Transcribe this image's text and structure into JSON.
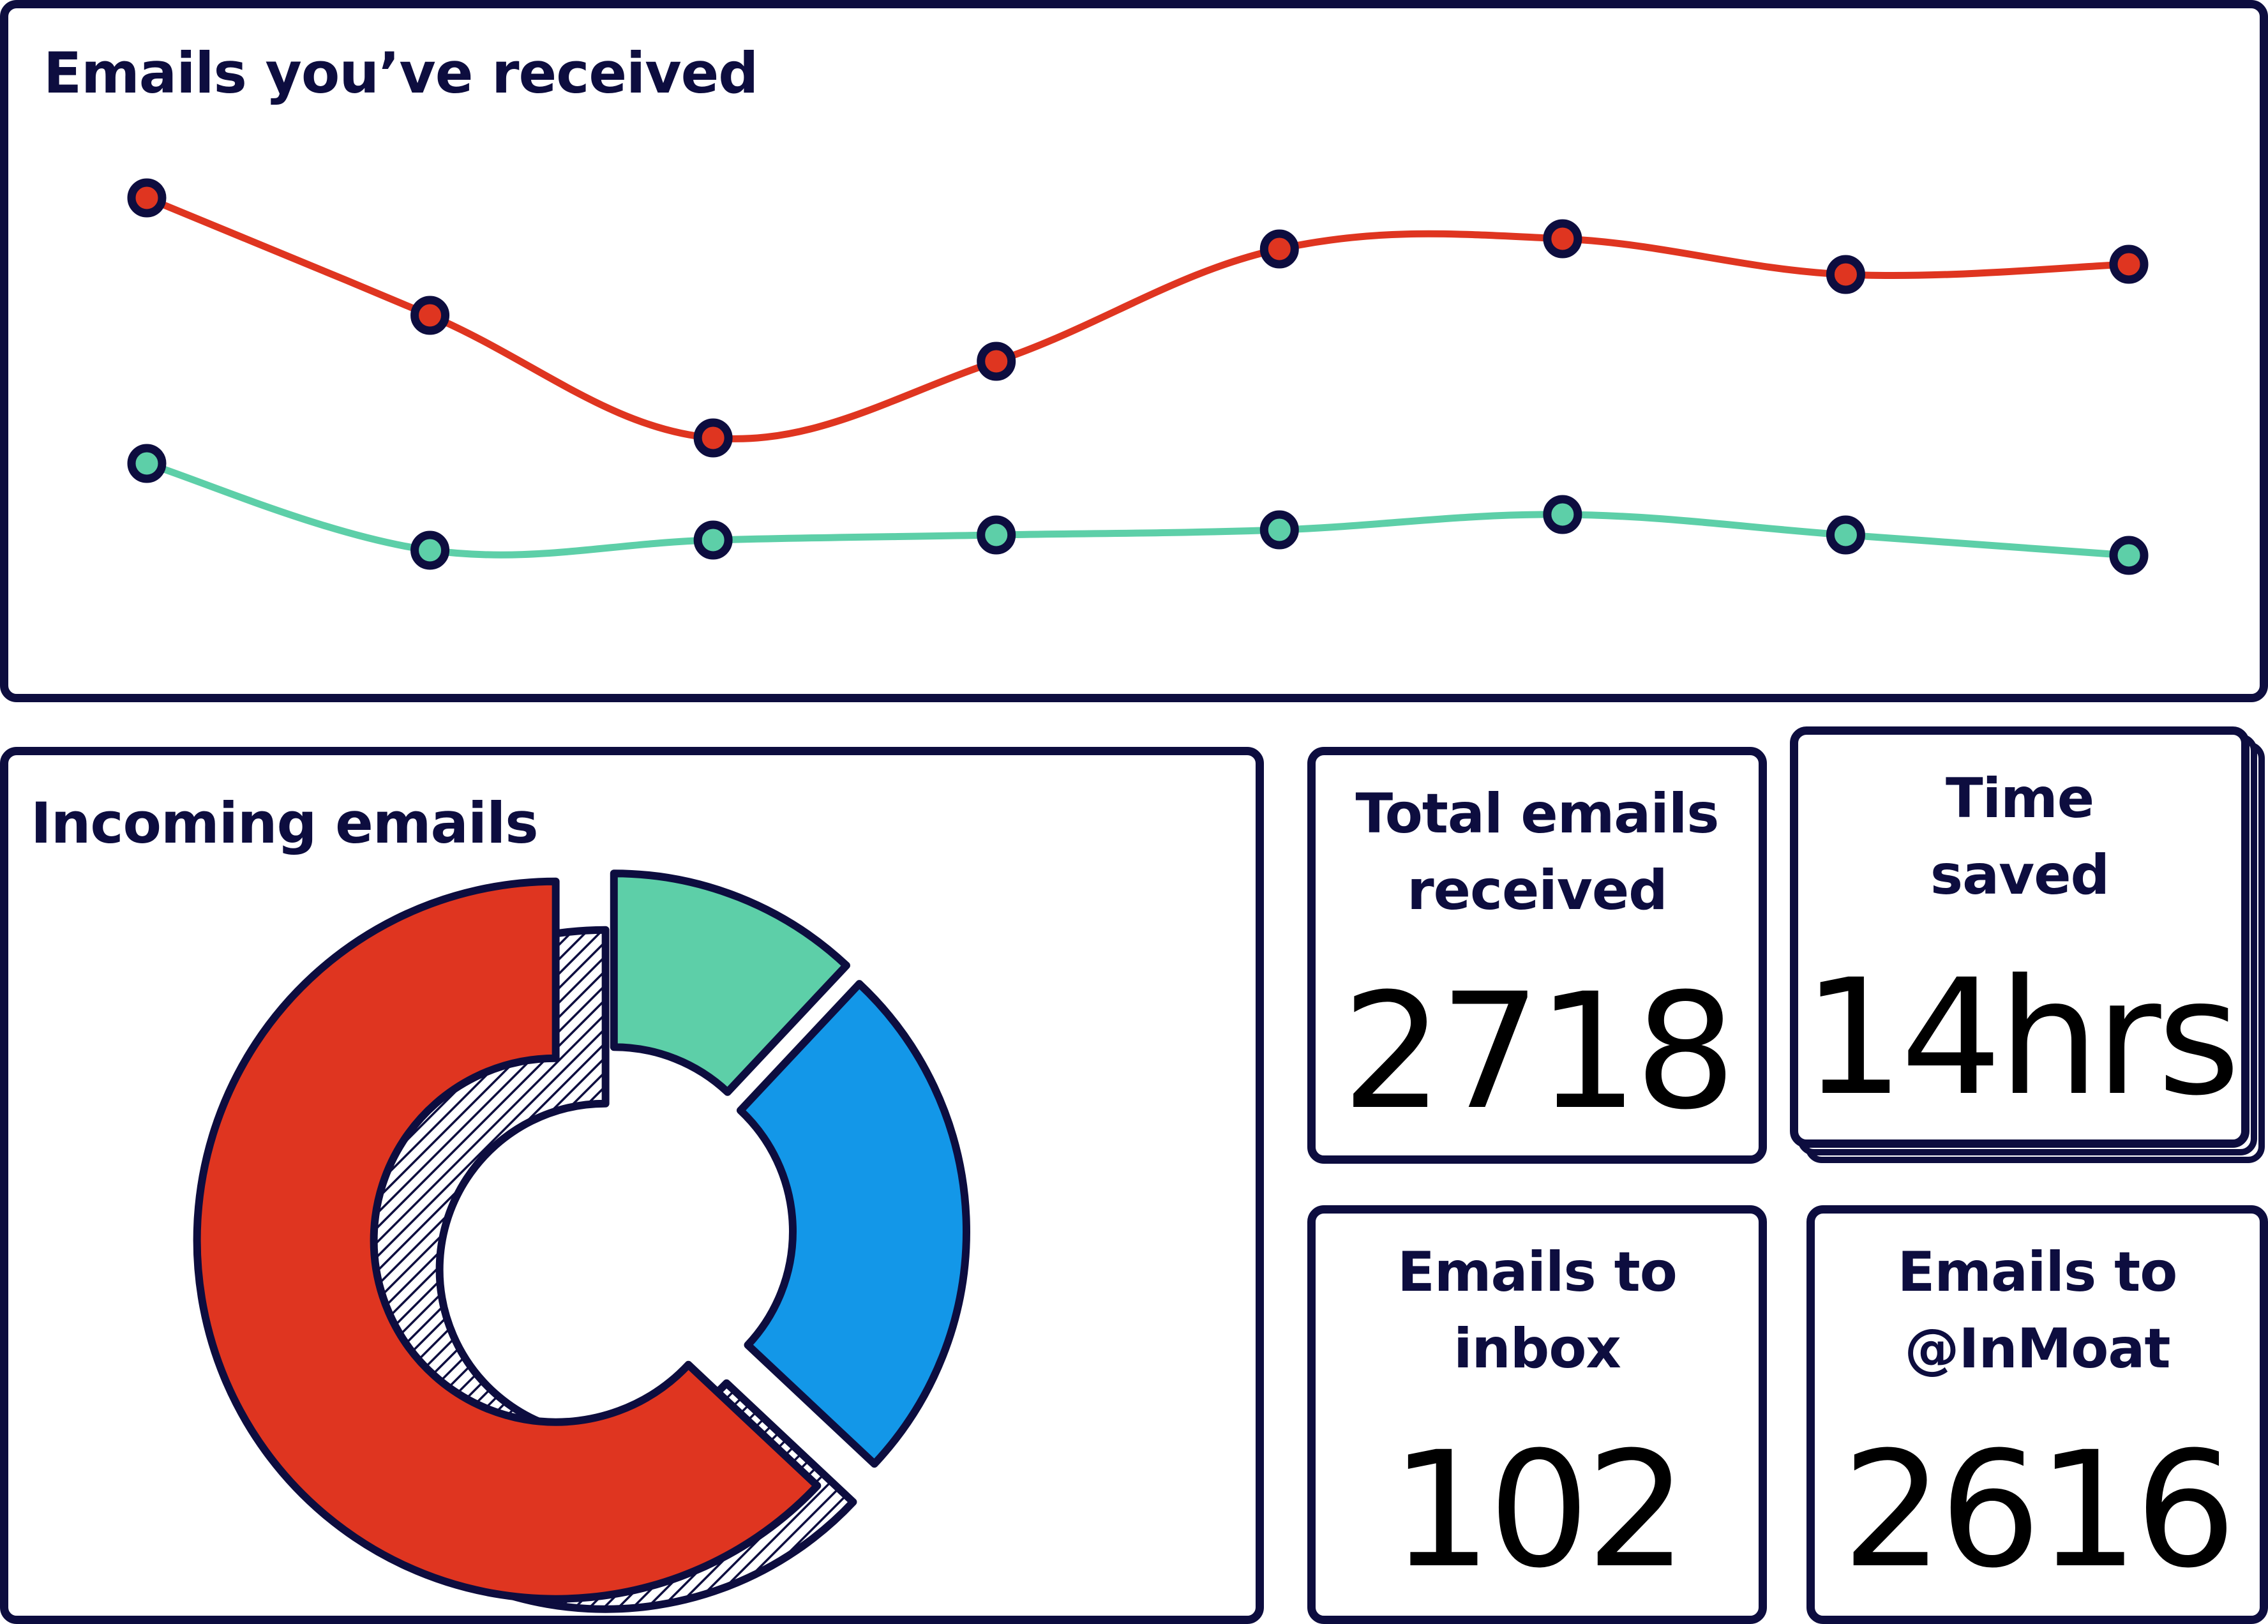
{
  "colors": {
    "outline": "#0d0d3f",
    "series_a": "#df3520",
    "series_b": "#5dcfa8",
    "blue": "#1397e8"
  },
  "line_panel": {
    "title": "Emails you’ve received"
  },
  "donut_panel": {
    "title": "Incoming emails"
  },
  "stats": {
    "total": {
      "label_1": "Total emails",
      "label_2": "received",
      "value": "2718"
    },
    "time": {
      "label_1": "Time",
      "label_2": "saved",
      "value": "14hrs"
    },
    "inbox": {
      "label_1": "Emails to",
      "label_2": "inbox",
      "value": "102"
    },
    "inmoat": {
      "label_1": "Emails to",
      "label_2": "@InMoat",
      "value": "2616"
    }
  },
  "chart_data": [
    {
      "type": "line",
      "title": "Emails you’ve received",
      "x": [
        1,
        2,
        3,
        4,
        5,
        6,
        7,
        8
      ],
      "ylim": [
        0,
        100
      ],
      "grid": false,
      "series": [
        {
          "color": "#df3520",
          "values": [
            90,
            67,
            43,
            58,
            80,
            82,
            75,
            77
          ]
        },
        {
          "color": "#5dcfa8",
          "values": [
            38,
            21,
            23,
            24,
            25,
            28,
            24,
            20
          ]
        }
      ]
    },
    {
      "type": "pie",
      "title": "Incoming emails",
      "values": [
        12,
        25,
        63
      ],
      "colors": [
        "#5dcfa8",
        "#1397e8",
        "#df3520"
      ]
    }
  ]
}
